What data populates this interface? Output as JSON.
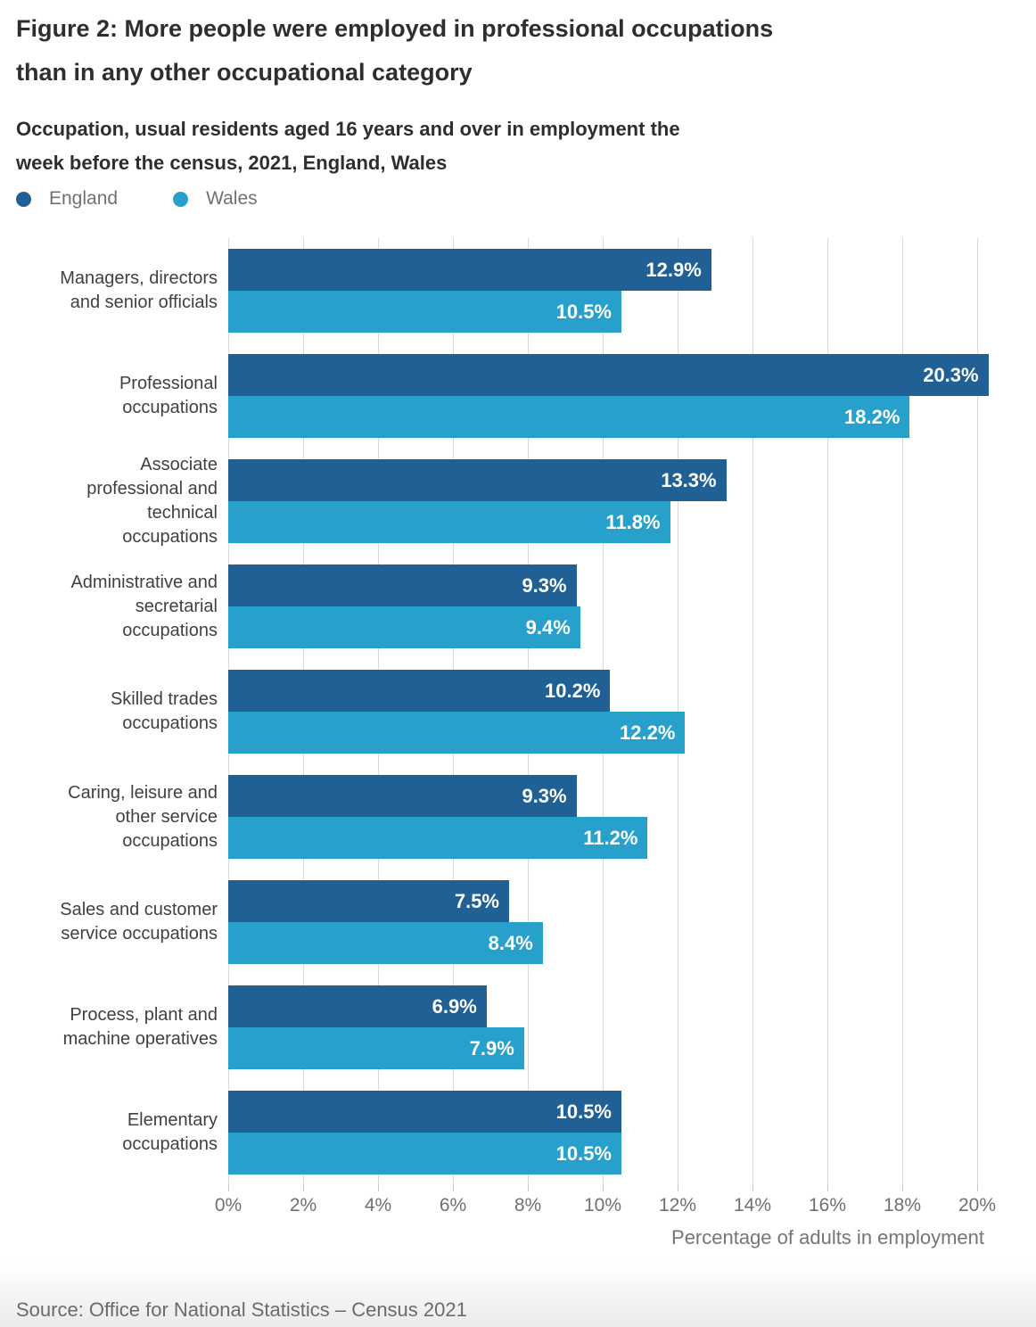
{
  "header": {
    "title_lines": [
      "Figure 2: More people were employed in professional occupations",
      "than in any other occupational category"
    ],
    "subtitle_lines": [
      "Occupation, usual residents aged 16 years and over in employment the",
      "week before the census, 2021, England, Wales"
    ]
  },
  "chart_data": {
    "type": "bar",
    "orientation": "horizontal",
    "categories": [
      "Managers, directors and senior officials",
      "Professional occupations",
      "Associate professional and technical occupations",
      "Administrative and secretarial occupations",
      "Skilled trades occupations",
      "Caring, leisure and other service occupations",
      "Sales and customer service occupations",
      "Process, plant and machine operatives",
      "Elementary occupations"
    ],
    "series": [
      {
        "name": "England",
        "color": "#206095",
        "values": [
          12.9,
          20.3,
          13.3,
          9.3,
          10.2,
          9.3,
          7.5,
          6.9,
          10.5
        ],
        "labels": [
          "12.9%",
          "20.3%",
          "13.3%",
          "9.3%",
          "10.2%",
          "9.3%",
          "7.5%",
          "6.9%",
          "10.5%"
        ]
      },
      {
        "name": "Wales",
        "color": "#27a0cc",
        "values": [
          10.5,
          18.2,
          11.8,
          9.4,
          12.2,
          11.2,
          8.4,
          7.9,
          10.5
        ],
        "labels": [
          "10.5%",
          "18.2%",
          "11.8%",
          "9.4%",
          "12.2%",
          "11.2%",
          "8.4%",
          "7.9%",
          "10.5%"
        ]
      }
    ],
    "xlabel": "Percentage of adults in employment",
    "xlim": [
      0,
      20
    ],
    "xticks": [
      "0%",
      "2%",
      "4%",
      "6%",
      "8%",
      "10%",
      "12%",
      "14%",
      "16%",
      "18%",
      "20%"
    ],
    "grid": "vertical gridlines every 2%",
    "legend_position": "top-left",
    "value_labels": "inside bar end, white bold"
  },
  "footer": {
    "source": "Source: Office for National Statistics – Census 2021"
  }
}
